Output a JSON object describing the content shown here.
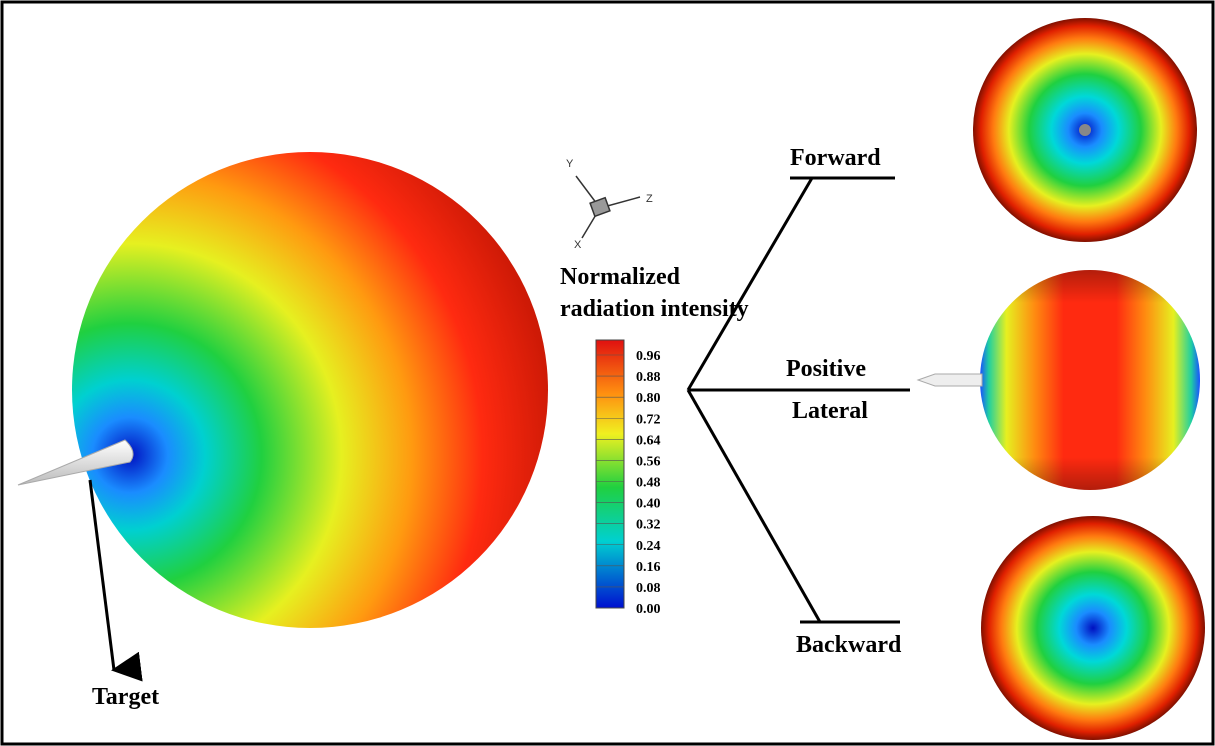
{
  "figure": {
    "axes": {
      "y": "Y",
      "z": "Z",
      "x": "X"
    },
    "legend": {
      "title_line1": "Normalized",
      "title_line2": "radiation intensity",
      "ticks": [
        "0.96",
        "0.88",
        "0.80",
        "0.72",
        "0.64",
        "0.56",
        "0.48",
        "0.40",
        "0.32",
        "0.24",
        "0.16",
        "0.08",
        "0.00"
      ]
    },
    "views": {
      "forward": "Forward",
      "positive": "Positive",
      "lateral": "Lateral",
      "backward": "Backward"
    },
    "target": "Target"
  }
}
